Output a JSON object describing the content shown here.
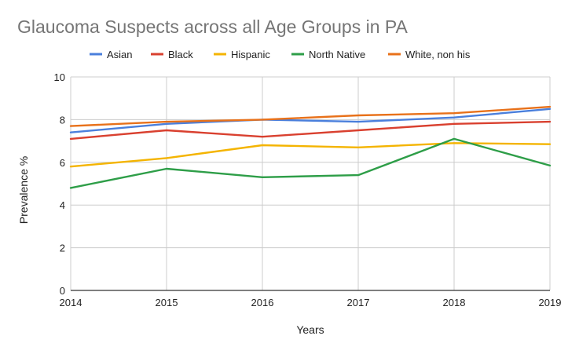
{
  "chart_data": {
    "type": "line",
    "title": "Glaucoma Suspects across all Age Groups in PA",
    "xlabel": "Years",
    "ylabel": "Prevalence %",
    "x": [
      "2014",
      "2015",
      "2016",
      "2017",
      "2018",
      "2019"
    ],
    "yticks": [
      "0",
      "2",
      "4",
      "6",
      "8",
      "10"
    ],
    "ylim": [
      0,
      10
    ],
    "grid": true,
    "legend_position": "top",
    "series": [
      {
        "name": "Asian",
        "color": "#4a7fdc",
        "values": [
          7.4,
          7.8,
          8.0,
          7.9,
          8.1,
          8.5
        ]
      },
      {
        "name": "Black",
        "color": "#d9402f",
        "values": [
          7.1,
          7.5,
          7.2,
          7.5,
          7.8,
          7.9
        ]
      },
      {
        "name": "Hispanic",
        "color": "#f4b400",
        "values": [
          5.8,
          6.2,
          6.8,
          6.7,
          6.9,
          6.85
        ]
      },
      {
        "name": "North Native",
        "color": "#2e9e48",
        "values": [
          4.8,
          5.7,
          5.3,
          5.4,
          7.1,
          5.85
        ]
      },
      {
        "name": "White, non his",
        "color": "#e8711a",
        "values": [
          7.7,
          7.9,
          8.0,
          8.2,
          8.3,
          8.6
        ]
      }
    ]
  }
}
